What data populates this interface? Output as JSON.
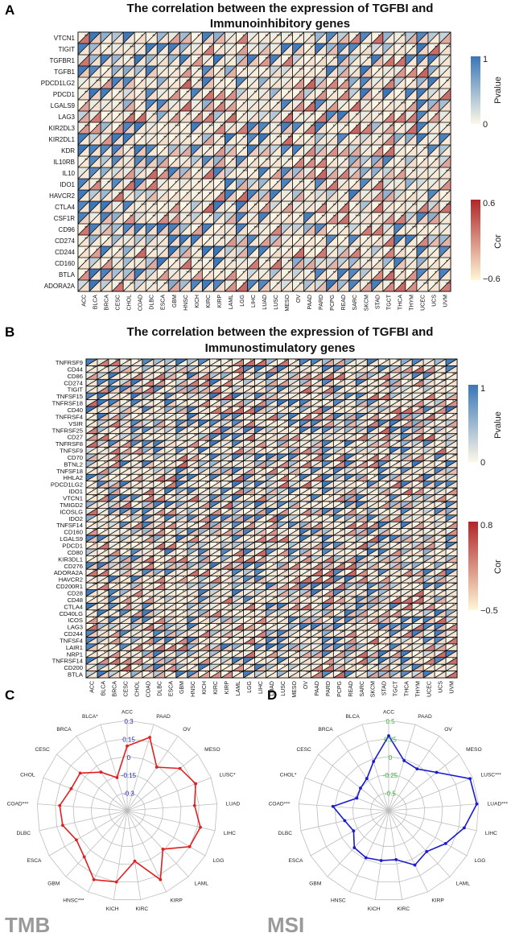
{
  "chart_data": [
    {
      "type": "heatmap",
      "panel": "A",
      "title_line1": "The correlation between the expression of TGFBI and",
      "title_line2": "Immunoinhibitory genes",
      "rows": [
        "VTCN1",
        "TIGIT",
        "TGFBR1",
        "TGFB1",
        "PDCD1LG2",
        "PDCD1",
        "LGALS9",
        "LAG3",
        "KIR2DL3",
        "KIR2DL1",
        "KDR",
        "IL10RB",
        "IL10",
        "IDO1",
        "HAVCR2",
        "CTLA4",
        "CSF1R",
        "CD96",
        "CD274",
        "CD244",
        "CD160",
        "BTLA",
        "ADORA2A"
      ],
      "columns": [
        "ACC",
        "BLCA",
        "BRCA",
        "CESC",
        "CHOL",
        "COAD",
        "DLBC",
        "ESCA",
        "GBM",
        "HNSC",
        "KICH",
        "KIRC",
        "KIRP",
        "LAML",
        "LGG",
        "LIHC",
        "LUAD",
        "LUSC",
        "MESO",
        "OV",
        "PAAD",
        "PARD",
        "PCPG",
        "READ",
        "SARC",
        "SKCM",
        "STAD",
        "TGCT",
        "THCA",
        "THYM",
        "UCEC",
        "UCS",
        "UVM"
      ],
      "legend_pvalue": {
        "label": "Pvalue",
        "max": "1",
        "min": "0"
      },
      "legend_cor": {
        "label": "Cor",
        "max": "0.6",
        "min": "−0.6"
      },
      "significance_marks": [
        "*",
        "**",
        "***"
      ]
    },
    {
      "type": "heatmap",
      "panel": "B",
      "title_line1": "The correlation between the expression of TGFBI and",
      "title_line2": "Immunostimulatory genes",
      "rows": [
        "TNFRSF9",
        "CD44",
        "CD86",
        "CD274",
        "TIGIT",
        "TNFSF15",
        "TNFRSF18",
        "CD40",
        "TNFRSF4",
        "VSIR",
        "TNFRSF25",
        "CD27",
        "TNFRSF8",
        "TNFSF9",
        "CD70",
        "BTNL2",
        "TNFSF18",
        "HHLA2",
        "PDCD1LG2",
        "IDO1",
        "VTCN1",
        "TMIGD2",
        "ICOSLG",
        "IDO2",
        "TNFSF14",
        "CD160",
        "LGALS9",
        "PDCD1",
        "CD80",
        "KIR3DL1",
        "CD276",
        "ADORA2A",
        "HAVCR2",
        "CD200R1",
        "CD28",
        "CD48",
        "CTLA4",
        "CD40LG",
        "ICOS",
        "LAG3",
        "CD244",
        "TNFSF4",
        "LAIR1",
        "NRP1",
        "TNFRSF14",
        "CD200",
        "BTLA"
      ],
      "columns": [
        "ACC",
        "BLCA",
        "BRCA",
        "CESC",
        "CHOL",
        "COAD",
        "DLBC",
        "ESCA",
        "GBM",
        "HNSC",
        "KICH",
        "KIRC",
        "KIRP",
        "LAML",
        "LGG",
        "LIHC",
        "LUAD",
        "LUSC",
        "MESO",
        "OV",
        "PAAD",
        "PARD",
        "PCPG",
        "READ",
        "SARC",
        "SKCM",
        "STAD",
        "TGCT",
        "THCA",
        "THYM",
        "UCEC",
        "UCS",
        "UVM"
      ],
      "legend_pvalue": {
        "label": "Pvalue",
        "max": "1",
        "min": "0"
      },
      "legend_cor": {
        "label": "Cor",
        "max": "0.8",
        "min": "−0.5"
      },
      "significance_marks": [
        "*",
        "**",
        "***"
      ]
    },
    {
      "type": "radar",
      "panel": "C",
      "tag": "TMB",
      "color": "#e02020",
      "categories": [
        "ACC",
        "PAAD",
        "OV",
        "MESO",
        "LUSC*",
        "LUAD",
        "LIHC",
        "LGG",
        "LAML",
        "KIRP",
        "KIRC",
        "KICH",
        "HNSC***",
        "GBM",
        "ESCA",
        "DLBC",
        "COAD***",
        "CHOL",
        "CESC",
        "BRCA",
        "BLCA*"
      ],
      "values": [
        0.13,
        0.21,
        0.05,
        0.15,
        0.19,
        0.15,
        0.2,
        0.18,
        0.05,
        0.21,
        0.04,
        0.18,
        0.21,
        0.12,
        0.09,
        0.14,
        0.15,
        0.1,
        0.1,
        0.01,
        -0.07
      ],
      "rlim": [
        -0.3,
        0.3
      ],
      "ticks": [
        "0.3",
        "0.15",
        "0",
        "-0.15",
        "-0.3"
      ],
      "tick_color": "#2a2ad0"
    },
    {
      "type": "radar",
      "panel": "D",
      "tag": "MSI",
      "color": "#1a1ad0",
      "categories": [
        "ACC",
        "PAAD",
        "OV",
        "MESO",
        "LUSC***",
        "LUAD***",
        "LIHC",
        "LGG",
        "LAML",
        "KIRP",
        "KIRC",
        "KICH",
        "HNSC",
        "GBM",
        "ESCA",
        "DLBC",
        "COAD***",
        "CHOL*",
        "CESC",
        "BRCA",
        "BLCA"
      ],
      "values": [
        0.33,
        0.08,
        0.06,
        0.18,
        0.47,
        0.48,
        0.36,
        0.23,
        0.12,
        0.17,
        0.05,
        0.06,
        0.08,
        0.06,
        -0.05,
        0.0,
        0.12,
        -0.12,
        -0.1,
        -0.07,
        0.07
      ],
      "rlim": [
        -0.5,
        0.5
      ],
      "ticks": [
        "0.5",
        "0.25",
        "0",
        "-0.25",
        "-0.5"
      ],
      "tick_color": "#2fb52f"
    }
  ]
}
